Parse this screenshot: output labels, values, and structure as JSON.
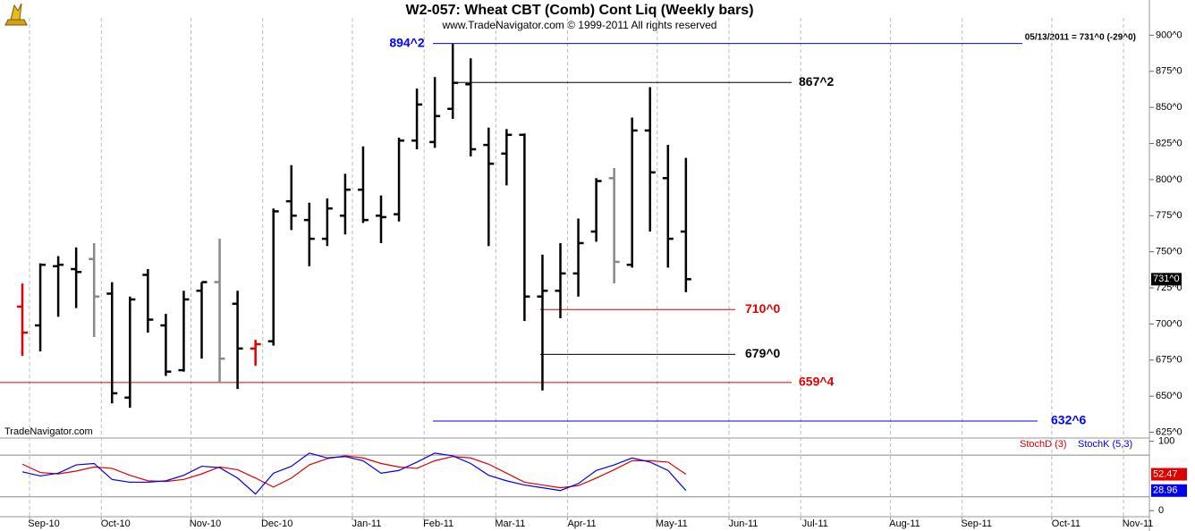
{
  "chart_data": {
    "type": "ohlc",
    "title": "W2-057:  Wheat CBT (Comb) Cont Liq  (Weekly bars)",
    "subtitle": "www.TradeNavigator.com © 1999-2011 All rights reserved",
    "status": "05/13/2011 = 731^0 (-29^0)",
    "source": "TradeNavigator.com",
    "last_price": {
      "value": 731,
      "label": "731^0"
    },
    "xgrid": true,
    "categories": [
      null,
      "Sep-10",
      null,
      null,
      null,
      "Oct-10",
      null,
      null,
      null,
      null,
      "Nov-10",
      null,
      null,
      null,
      "Dec-10",
      null,
      null,
      null,
      null,
      "Jan-11",
      null,
      null,
      null,
      "Feb-11",
      null,
      null,
      null,
      "Mar-11",
      null,
      null,
      null,
      "Apr-11",
      null,
      null,
      null,
      null,
      "May-11",
      null,
      null,
      null,
      "Jun-11",
      null,
      null,
      null,
      "Jul-11",
      null,
      null,
      null,
      null,
      "Aug-11",
      null,
      null,
      null,
      "Sep-11",
      null,
      null,
      null,
      null,
      "Oct-11",
      null,
      null,
      null,
      "Nov-11",
      null
    ],
    "open": [
      712,
      699,
      740,
      738,
      745,
      721,
      649,
      734,
      699,
      668,
      723,
      729,
      714,
      683,
      688,
      785,
      772,
      759,
      775,
      793,
      775,
      776,
      827,
      826,
      849,
      866,
      824,
      818,
      831,
      719,
      723,
      735,
      764,
      801,
      741,
      834,
      801,
      764,
      null,
      null,
      null,
      null,
      null,
      null,
      null,
      null,
      null,
      null,
      null,
      null,
      null,
      null,
      null,
      null,
      null,
      null,
      null,
      null,
      null,
      null,
      null,
      null,
      null,
      null
    ],
    "high": [
      728,
      742,
      747,
      753,
      756,
      729,
      719,
      738,
      707,
      723,
      729,
      759,
      723,
      689,
      780,
      810,
      784,
      787,
      804,
      823,
      789,
      829,
      863,
      871,
      894,
      884,
      836,
      835,
      832,
      748,
      756,
      773,
      801,
      808,
      843,
      864,
      824,
      815,
      null,
      null,
      null,
      null,
      null,
      null,
      null,
      null,
      null,
      null,
      null,
      null,
      null,
      null,
      null,
      null,
      null,
      null,
      null,
      null,
      null,
      null,
      null,
      null,
      null,
      null
    ],
    "low": [
      678,
      681,
      705,
      711,
      691,
      645,
      642,
      694,
      664,
      667,
      676,
      659,
      655,
      671,
      685,
      765,
      740,
      754,
      762,
      770,
      756,
      771,
      821,
      822,
      842,
      816,
      754,
      796,
      702,
      654,
      704,
      719,
      757,
      728,
      739,
      764,
      739,
      722,
      null,
      null,
      null,
      null,
      null,
      null,
      null,
      null,
      null,
      null,
      null,
      null,
      null,
      null,
      null,
      null,
      null,
      null,
      null,
      null,
      null,
      null,
      null,
      null,
      null,
      null
    ],
    "close": [
      694,
      741,
      741,
      736,
      719,
      652,
      717,
      703,
      667,
      717,
      729,
      676,
      683,
      686,
      778,
      775,
      759,
      780,
      793,
      772,
      774,
      827,
      852,
      844,
      867,
      821,
      811,
      831,
      719,
      723,
      735,
      756,
      799,
      743,
      834,
      805,
      759,
      731,
      null,
      null,
      null,
      null,
      null,
      null,
      null,
      null,
      null,
      null,
      null,
      null,
      null,
      null,
      null,
      null,
      null,
      null,
      null,
      null,
      null,
      null,
      null,
      null,
      null,
      null
    ],
    "colors": [
      "#e00000",
      "#000",
      "#000",
      "#000",
      "#888",
      "#000",
      "#000",
      "#000",
      "#000",
      "#000",
      "#000",
      "#888",
      "#000",
      "#e00000",
      "#000",
      "#000",
      "#000",
      "#000",
      "#000",
      "#000",
      "#000",
      "#000",
      "#000",
      "#000",
      "#000",
      "#000",
      "#000",
      "#000",
      "#000",
      "#000",
      "#000",
      "#000",
      "#000",
      "#888",
      "#000",
      "#000",
      "#000",
      "#000",
      null,
      null,
      null,
      null,
      null,
      null,
      null,
      null,
      null,
      null,
      null,
      null,
      null,
      null,
      null,
      null,
      null,
      null,
      null,
      null,
      null,
      null,
      null,
      null,
      null,
      null
    ],
    "ylim": [
      621,
      912
    ],
    "yticks": [
      {
        "value": 900,
        "label": "900^0"
      },
      {
        "value": 875,
        "label": "875^0"
      },
      {
        "value": 850,
        "label": "850^0"
      },
      {
        "value": 825,
        "label": "825^0"
      },
      {
        "value": 800,
        "label": "800^0"
      },
      {
        "value": 775,
        "label": "775^0"
      },
      {
        "value": 750,
        "label": "750^0"
      },
      {
        "value": 725,
        "label": "725^0"
      },
      {
        "value": 700,
        "label": "700^0"
      },
      {
        "value": 675,
        "label": "675^0"
      },
      {
        "value": 650,
        "label": "650^0"
      },
      {
        "value": 625,
        "label": "625^0"
      }
    ],
    "levels": [
      {
        "value": 894.25,
        "label": "894^2",
        "color": "#0000ff"
      },
      {
        "value": 867.25,
        "label": "867^2",
        "color": "#000000"
      },
      {
        "value": 710,
        "label": "710^0",
        "color": "#e00000"
      },
      {
        "value": 679,
        "label": "679^0",
        "color": "#000000"
      },
      {
        "value": 659.5,
        "label": "659^4",
        "color": "#e00000"
      },
      {
        "value": 632.75,
        "label": "632^6",
        "color": "#0000ff"
      }
    ],
    "indicator": {
      "type": "line",
      "ylim": [
        -10,
        106
      ],
      "yticks": [
        0,
        100
      ],
      "grid_levels": [
        20,
        80
      ],
      "series": [
        {
          "name": "StochD (3)",
          "color": "#e00000",
          "values": [
            67,
            55,
            53,
            57,
            63,
            61,
            51,
            43,
            42,
            45,
            53,
            63,
            59,
            47,
            34,
            47,
            66,
            75,
            79,
            76,
            68,
            63,
            61,
            72,
            78,
            76,
            67,
            54,
            41,
            37,
            33,
            36,
            47,
            59,
            72,
            72,
            70,
            52.47,
            null,
            null,
            null,
            null,
            null,
            null,
            null,
            null,
            null,
            null,
            null,
            null,
            null,
            null,
            null,
            null,
            null,
            null,
            null,
            null,
            null,
            null,
            null,
            null,
            null,
            null
          ]
        },
        {
          "name": "StochK (5,3)",
          "color": "#0000ee",
          "values": [
            56,
            50,
            54,
            66,
            68,
            45,
            41,
            41,
            43,
            51,
            64,
            62,
            47,
            24,
            54,
            64,
            83,
            76,
            78,
            72,
            54,
            58,
            70,
            83,
            79,
            68,
            51,
            43,
            37,
            33,
            29,
            39,
            58,
            66,
            76,
            70,
            58,
            28.96,
            null,
            null,
            null,
            null,
            null,
            null,
            null,
            null,
            null,
            null,
            null,
            null,
            null,
            null,
            null,
            null,
            null,
            null,
            null,
            null,
            null,
            null,
            null,
            null,
            null,
            null
          ]
        }
      ]
    }
  }
}
